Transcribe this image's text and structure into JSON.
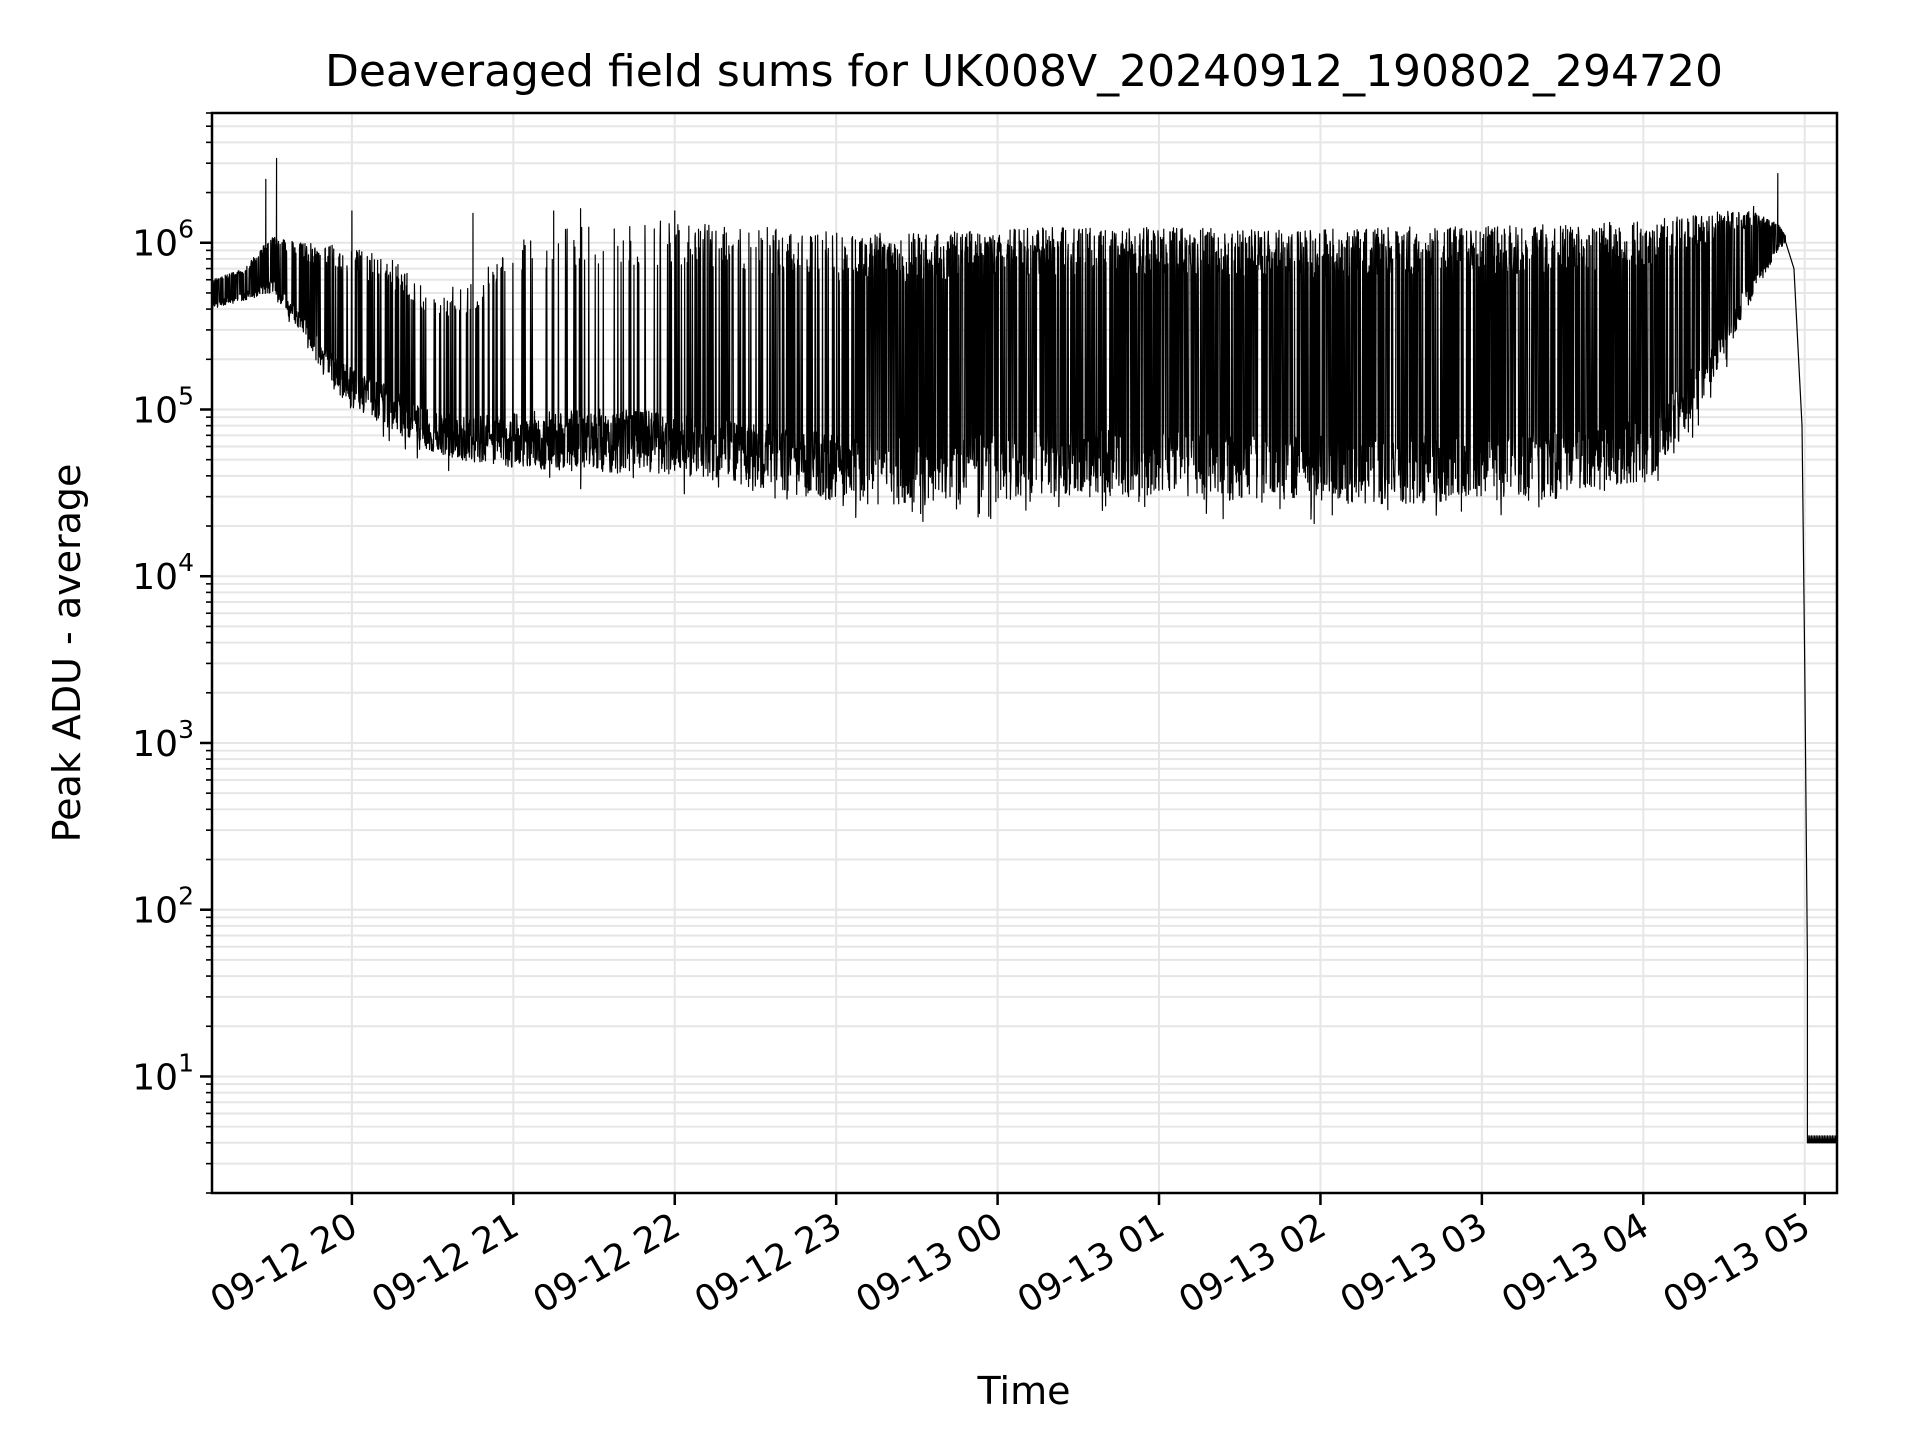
{
  "chart_data": {
    "type": "line",
    "title": "Deaveraged field sums for UK008V_20240912_190802_294720",
    "xlabel": "Time",
    "ylabel": "Peak ADU - average",
    "yscale": "log",
    "ylim": [
      2,
      6000000
    ],
    "xlim": [
      "2024-09-12 19:08",
      "2024-09-13 05:12"
    ],
    "grid": true,
    "grid_minor": true,
    "line_color": "#000000",
    "x_ticks": [
      {
        "value": "2024-09-12 20:00",
        "label": "09-12 20"
      },
      {
        "value": "2024-09-12 21:00",
        "label": "09-12 21"
      },
      {
        "value": "2024-09-12 22:00",
        "label": "09-12 22"
      },
      {
        "value": "2024-09-12 23:00",
        "label": "09-12 23"
      },
      {
        "value": "2024-09-13 00:00",
        "label": "09-13 00"
      },
      {
        "value": "2024-09-13 01:00",
        "label": "09-13 01"
      },
      {
        "value": "2024-09-13 02:00",
        "label": "09-13 02"
      },
      {
        "value": "2024-09-13 03:00",
        "label": "09-13 03"
      },
      {
        "value": "2024-09-13 04:00",
        "label": "09-13 04"
      },
      {
        "value": "2024-09-13 05:00",
        "label": "09-13 05"
      }
    ],
    "y_ticks": [
      {
        "value": 10,
        "base": "10",
        "exp": "1"
      },
      {
        "value": 100,
        "base": "10",
        "exp": "2"
      },
      {
        "value": 1000,
        "base": "10",
        "exp": "3"
      },
      {
        "value": 10000,
        "base": "10",
        "exp": "4"
      },
      {
        "value": 100000,
        "base": "10",
        "exp": "5"
      },
      {
        "value": 1000000,
        "base": "10",
        "exp": "6"
      }
    ],
    "envelope": {
      "x": [
        "2024-09-12 19:08",
        "2024-09-12 19:20",
        "2024-09-12 19:30",
        "2024-09-12 19:40",
        "2024-09-12 19:50",
        "2024-09-12 20:00",
        "2024-09-12 20:15",
        "2024-09-12 20:30",
        "2024-09-12 20:45",
        "2024-09-12 21:00",
        "2024-09-12 21:30",
        "2024-09-12 22:00",
        "2024-09-12 22:30",
        "2024-09-12 23:00",
        "2024-09-12 23:30",
        "2024-09-13 00:00",
        "2024-09-13 00:30",
        "2024-09-13 01:00",
        "2024-09-13 01:30",
        "2024-09-13 02:00",
        "2024-09-13 02:30",
        "2024-09-13 03:00",
        "2024-09-13 03:30",
        "2024-09-13 04:00",
        "2024-09-13 04:15",
        "2024-09-13 04:30",
        "2024-09-13 04:40",
        "2024-09-13 04:50",
        "2024-09-13 04:53"
      ],
      "upper": [
        600000,
        700000,
        1100000,
        1000000,
        1000000,
        950000,
        800000,
        500000,
        600000,
        1000000,
        1400000,
        1350000,
        1250000,
        1150000,
        1150000,
        1200000,
        1250000,
        1250000,
        1200000,
        1200000,
        1250000,
        1250000,
        1300000,
        1350000,
        1450000,
        1550000,
        1550000,
        1300000,
        1100000
      ],
      "lower": [
        400000,
        450000,
        500000,
        300000,
        150000,
        100000,
        75000,
        55000,
        48000,
        45000,
        42000,
        40000,
        34000,
        28000,
        26000,
        28000,
        30000,
        30000,
        28000,
        27000,
        27000,
        28000,
        29000,
        35000,
        70000,
        200000,
        450000,
        900000,
        1000000
      ]
    },
    "spikes": [
      {
        "x": "2024-09-12 19:28",
        "y": 2400000
      },
      {
        "x": "2024-09-12 19:32",
        "y": 3200000
      },
      {
        "x": "2024-09-12 20:00",
        "y": 1550000
      },
      {
        "x": "2024-09-12 20:45",
        "y": 1500000
      },
      {
        "x": "2024-09-12 21:15",
        "y": 1550000
      },
      {
        "x": "2024-09-12 21:25",
        "y": 1600000
      },
      {
        "x": "2024-09-12 22:00",
        "y": 1550000
      },
      {
        "x": "2024-09-13 04:41",
        "y": 1650000
      },
      {
        "x": "2024-09-13 04:50",
        "y": 2600000
      }
    ],
    "tail": {
      "x": [
        "2024-09-13 04:53",
        "2024-09-13 04:56",
        "2024-09-13 04:59",
        "2024-09-13 05:00",
        "2024-09-13 05:01",
        "2024-09-13 05:01",
        "2024-09-13 05:12"
      ],
      "y": [
        1000000,
        700000,
        80000,
        3000,
        50,
        4,
        4
      ]
    }
  }
}
